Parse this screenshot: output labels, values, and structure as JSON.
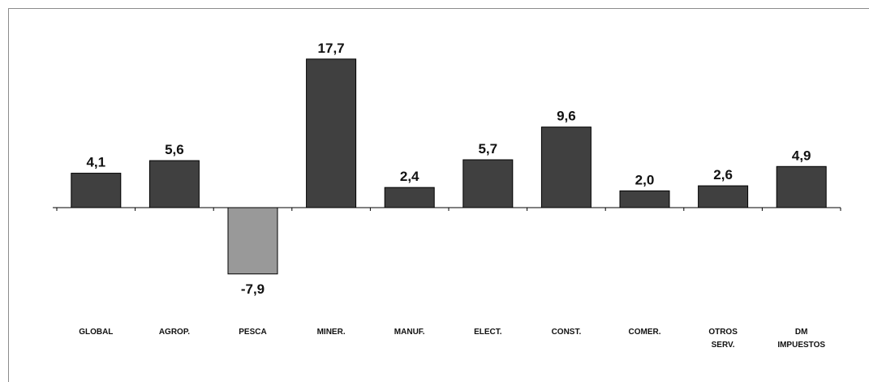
{
  "chart_data": {
    "type": "bar",
    "title": "",
    "xlabel": "",
    "ylabel": "",
    "categories": [
      "GLOBAL",
      "AGROP.",
      "PESCA",
      "MINER.",
      "MANUF.",
      "ELECT.",
      "CONST.",
      "COMER.",
      "OTROS SERV.",
      "DM IMPUESTOS"
    ],
    "values": [
      4.1,
      5.6,
      -7.9,
      17.7,
      2.4,
      5.7,
      9.6,
      2.0,
      2.6,
      4.9
    ],
    "value_labels": [
      "4,1",
      "5,6",
      "-7,9",
      "17,7",
      "2,4",
      "5,7",
      "9,6",
      "2,0",
      "2,6",
      "4,9"
    ],
    "ylim": [
      -10,
      20
    ],
    "grid": false,
    "colors": {
      "positive": "#404040",
      "negative": "#999999",
      "axis": "#000000",
      "text": "#111111"
    }
  }
}
